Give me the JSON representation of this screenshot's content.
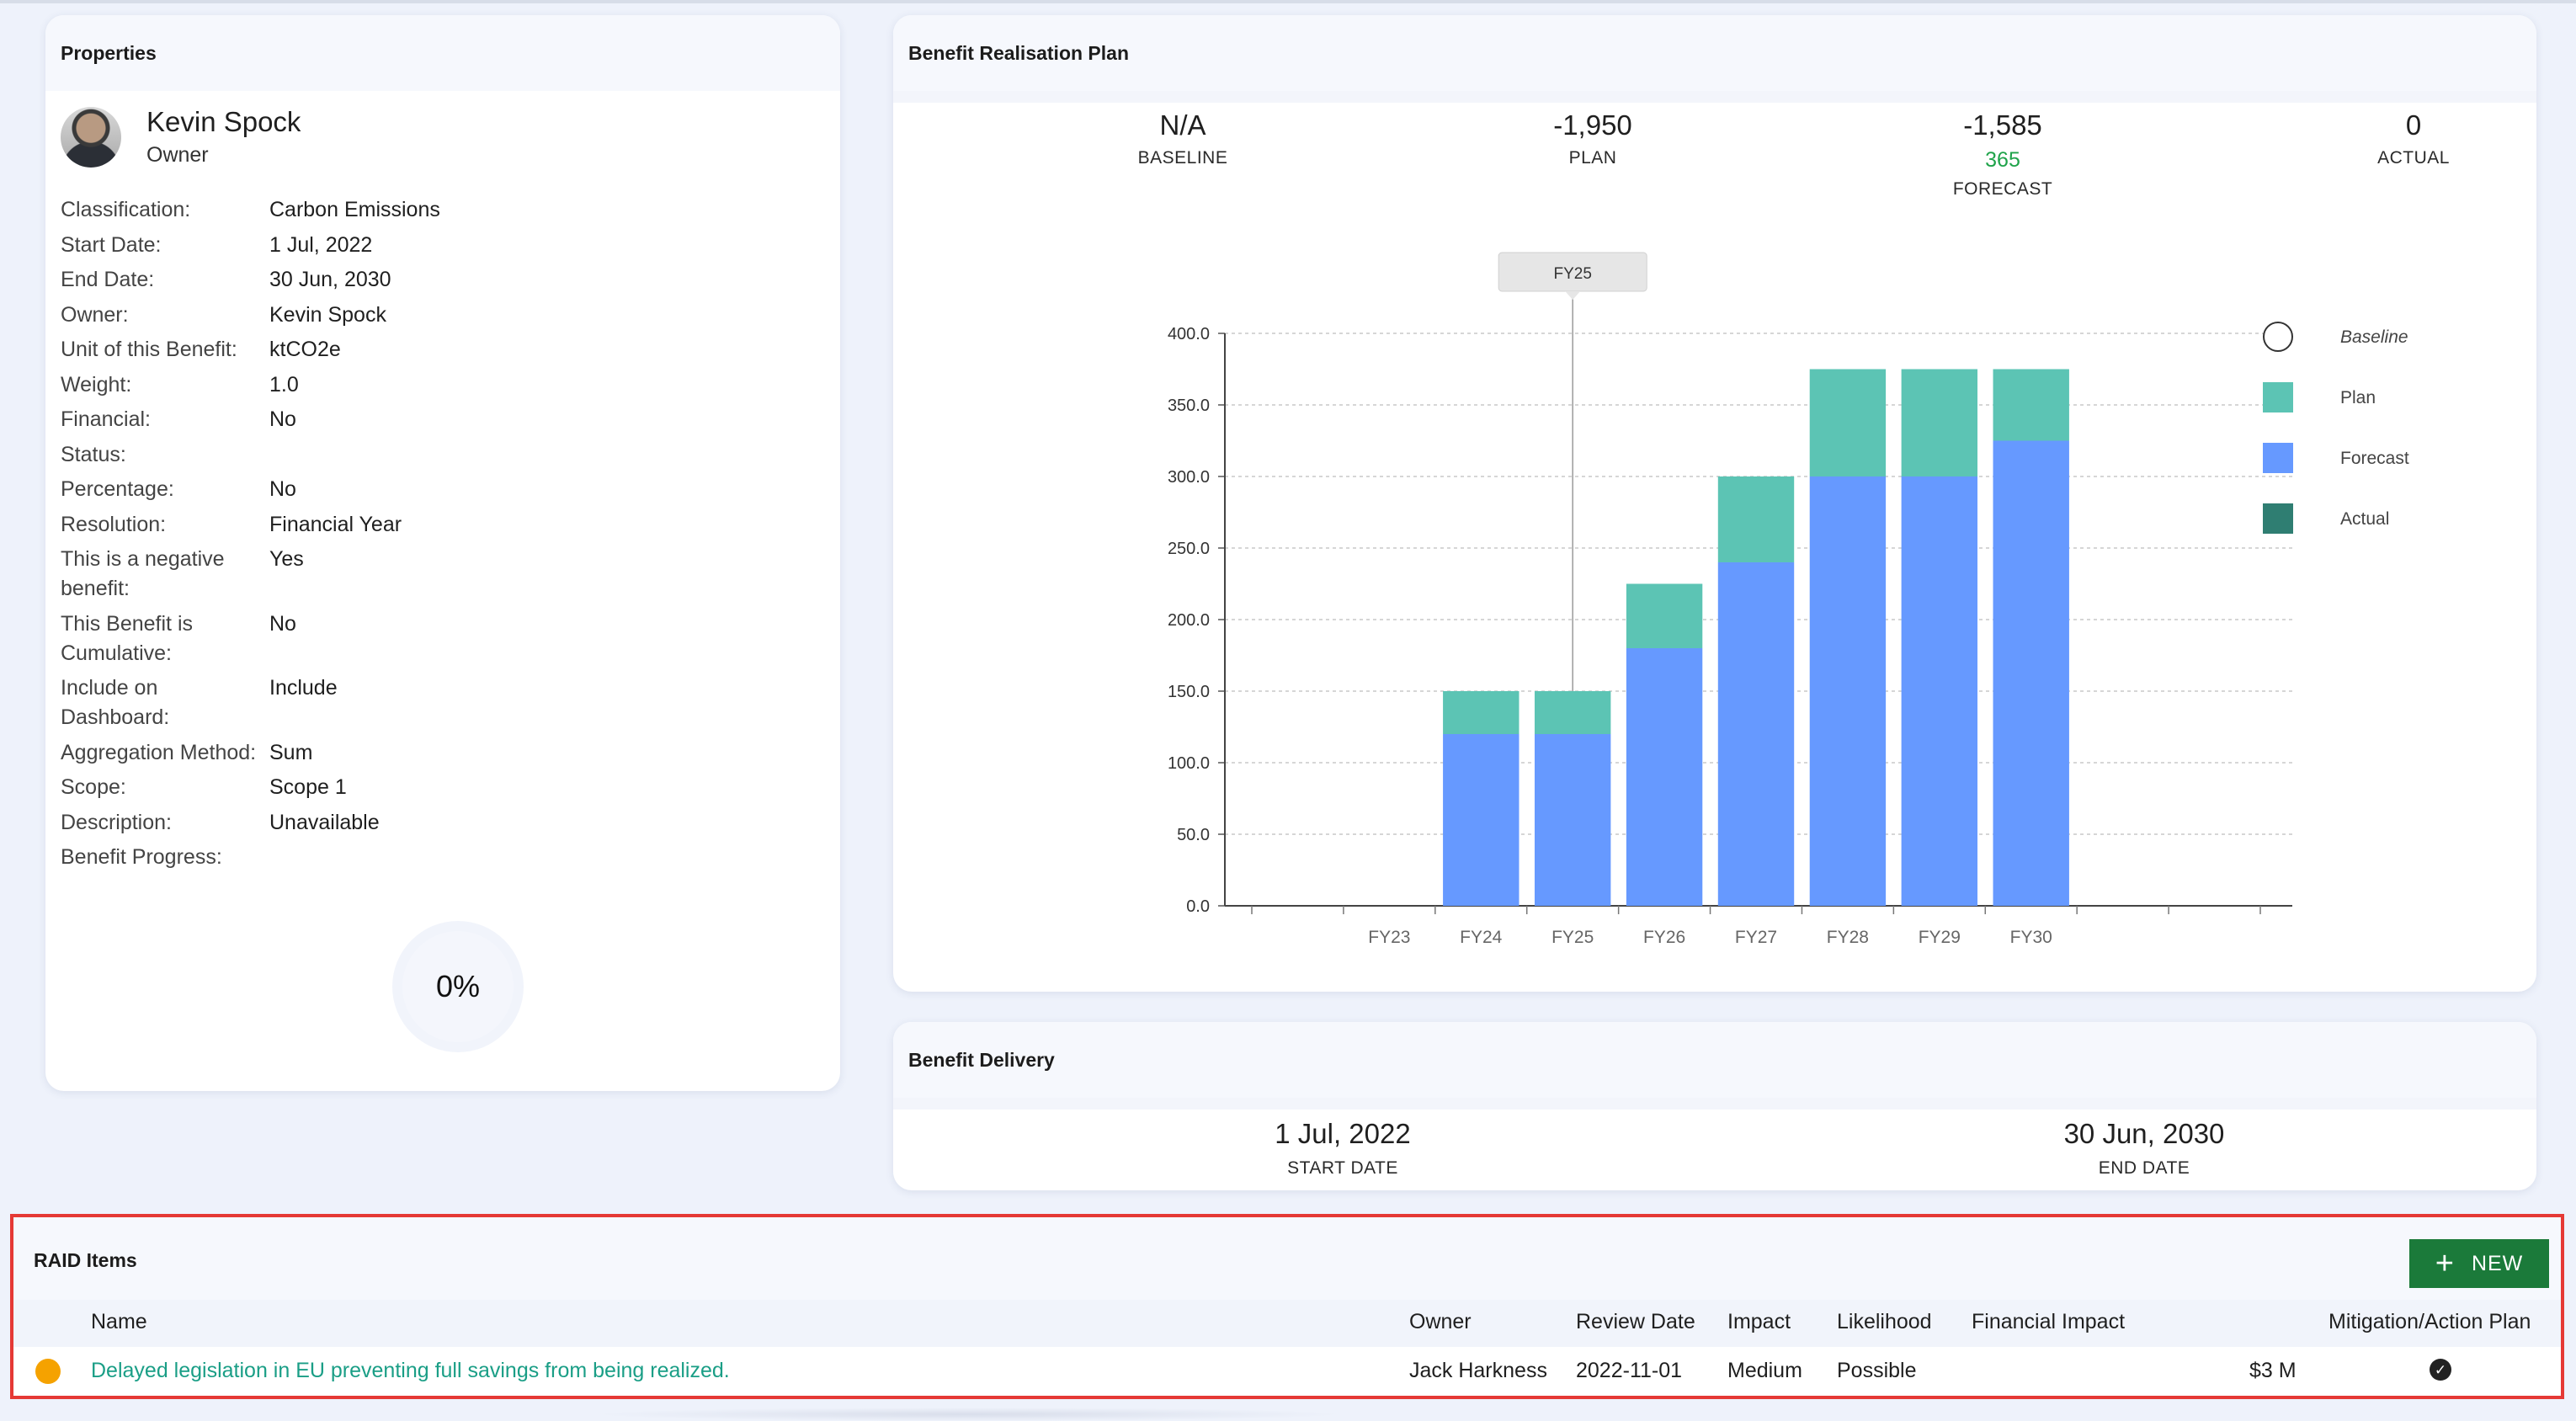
{
  "properties": {
    "title": "Properties",
    "owner_name": "Kevin Spock",
    "owner_role": "Owner",
    "rows": [
      {
        "label": "Classification:",
        "value": "Carbon Emissions"
      },
      {
        "label": "Start Date:",
        "value": "1 Jul, 2022"
      },
      {
        "label": "End Date:",
        "value": "30 Jun, 2030"
      },
      {
        "label": "Owner:",
        "value": "Kevin Spock"
      },
      {
        "label": "Unit of this Benefit:",
        "value": "ktCO2e"
      },
      {
        "label": "Weight:",
        "value": "1.0"
      },
      {
        "label": "Financial:",
        "value": "No"
      },
      {
        "label": "Status:",
        "value": ""
      },
      {
        "label": "Percentage:",
        "value": "No"
      },
      {
        "label": "Resolution:",
        "value": "Financial Year"
      },
      {
        "label": "This is a negative benefit:",
        "value": "Yes"
      },
      {
        "label": "This Benefit is Cumulative:",
        "value": "No"
      },
      {
        "label": "Include on Dashboard:",
        "value": "Include"
      },
      {
        "label": "Aggregation Method:",
        "value": "Sum"
      },
      {
        "label": "Scope:",
        "value": "Scope 1"
      },
      {
        "label": "Description:",
        "value": "Unavailable"
      },
      {
        "label": "Benefit Progress:",
        "value": ""
      }
    ],
    "progress": "0%"
  },
  "brp": {
    "title": "Benefit Realisation Plan",
    "baseline": {
      "value": "N/A",
      "label": "BASELINE"
    },
    "plan": {
      "value": "-1,950",
      "label": "PLAN"
    },
    "forecast": {
      "value": "-1,585",
      "sub": "365",
      "label": "FORECAST"
    },
    "actual": {
      "value": "0",
      "label": "ACTUAL"
    }
  },
  "chart_data": {
    "type": "bar",
    "stacked": true,
    "categories": [
      "",
      "FY23",
      "FY24",
      "FY25",
      "FY26",
      "FY27",
      "FY28",
      "FY29",
      "FY30",
      "",
      ""
    ],
    "series": [
      {
        "name": "Forecast",
        "color": "#6699ff",
        "values": [
          0,
          0,
          120,
          120,
          180,
          240,
          300,
          300,
          325,
          0,
          0
        ]
      },
      {
        "name": "Plan",
        "color": "#5cc4b4",
        "values": [
          0,
          0,
          30,
          30,
          45,
          60,
          75,
          75,
          50,
          0,
          0
        ]
      }
    ],
    "legend": [
      {
        "name": "Baseline",
        "style": "circle",
        "color": "#ffffff"
      },
      {
        "name": "Plan",
        "style": "square",
        "color": "#5cc4b4"
      },
      {
        "name": "Forecast",
        "style": "square",
        "color": "#6699ff"
      },
      {
        "name": "Actual",
        "style": "square",
        "color": "#2f7e72"
      }
    ],
    "yticks": [
      "0.0",
      "50.0",
      "100.0",
      "150.0",
      "200.0",
      "250.0",
      "300.0",
      "350.0",
      "400.0"
    ],
    "ylim": [
      0,
      400
    ],
    "tooltip": "FY25",
    "tooltip_category": "FY25"
  },
  "delivery": {
    "title": "Benefit Delivery",
    "start_value": "1 Jul, 2022",
    "start_label": "START DATE",
    "end_value": "30 Jun, 2030",
    "end_label": "END DATE"
  },
  "raid": {
    "title": "RAID Items",
    "new_label": "NEW",
    "columns": {
      "name": "Name",
      "owner": "Owner",
      "review": "Review Date",
      "impact": "Impact",
      "likelihood": "Likelihood",
      "financial": "Financial Impact",
      "mitigation": "Mitigation/Action Plan"
    },
    "row": {
      "name": "Delayed legislation in EU preventing full savings from being realized.",
      "owner": "Jack Harkness",
      "review": "2022-11-01",
      "impact": "Medium",
      "likelihood": "Possible",
      "financial": "$3 M"
    }
  }
}
